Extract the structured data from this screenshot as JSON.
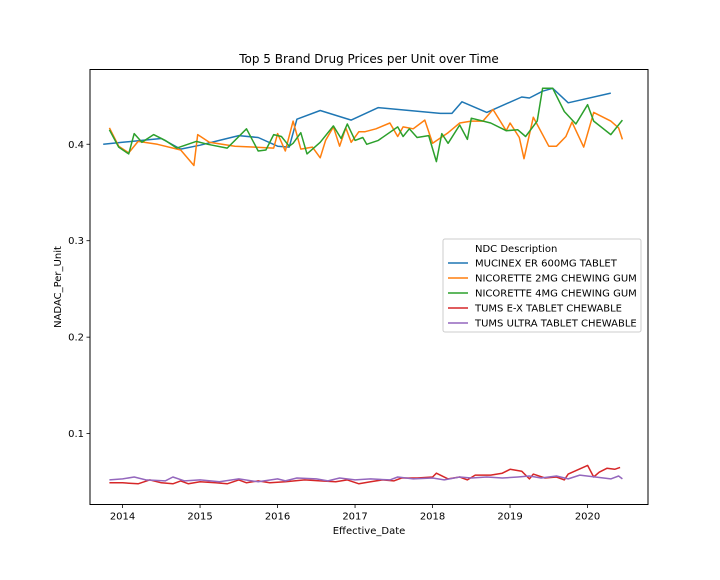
{
  "chart_data": {
    "type": "line",
    "title": "Top 5 Brand Drug Prices per Unit over Time",
    "xlabel": "Effective_Date",
    "ylabel": "NADAC_Per_Unit",
    "x_ticks": [
      2014,
      2015,
      2016,
      2017,
      2018,
      2019,
      2020
    ],
    "y_ticks": [
      0.1,
      0.2,
      0.3,
      0.4
    ],
    "y_tick_labels": [
      "0.1",
      "0.2",
      "0.3",
      "0.4"
    ],
    "xlim": [
      2013.58,
      2020.78
    ],
    "ylim": [
      0.0265,
      0.4775
    ],
    "grid": false,
    "legend": {
      "title": "NDC Description",
      "placement": "center-right"
    },
    "series": [
      {
        "name": "MUCINEX ER 600MG TABLET",
        "color": "#1f77b4",
        "points": [
          [
            2013.75,
            0.4
          ],
          [
            2014.0,
            0.402
          ],
          [
            2014.25,
            0.404
          ],
          [
            2014.5,
            0.406
          ],
          [
            2014.75,
            0.395
          ],
          [
            2015.0,
            0.399
          ],
          [
            2015.25,
            0.404
          ],
          [
            2015.5,
            0.409
          ],
          [
            2015.75,
            0.407
          ],
          [
            2016.0,
            0.398
          ],
          [
            2016.15,
            0.397
          ],
          [
            2016.25,
            0.426
          ],
          [
            2016.55,
            0.435
          ],
          [
            2016.95,
            0.425
          ],
          [
            2017.3,
            0.438
          ],
          [
            2017.7,
            0.435
          ],
          [
            2018.1,
            0.432
          ],
          [
            2018.25,
            0.432
          ],
          [
            2018.38,
            0.444
          ],
          [
            2018.7,
            0.433
          ],
          [
            2019.15,
            0.449
          ],
          [
            2019.25,
            0.448
          ],
          [
            2019.42,
            0.455
          ],
          [
            2019.55,
            0.458
          ],
          [
            2019.75,
            0.443
          ],
          [
            2020.3,
            0.453
          ]
        ]
      },
      {
        "name": "NICORETTE 2MG CHEWING GUM",
        "color": "#ff7f0e",
        "points": [
          [
            2013.83,
            0.417
          ],
          [
            2013.95,
            0.398
          ],
          [
            2014.08,
            0.391
          ],
          [
            2014.2,
            0.403
          ],
          [
            2014.45,
            0.4
          ],
          [
            2014.75,
            0.394
          ],
          [
            2014.92,
            0.378
          ],
          [
            2014.97,
            0.41
          ],
          [
            2015.12,
            0.402
          ],
          [
            2015.45,
            0.398
          ],
          [
            2015.95,
            0.396
          ],
          [
            2016.0,
            0.411
          ],
          [
            2016.1,
            0.393
          ],
          [
            2016.2,
            0.424
          ],
          [
            2016.3,
            0.395
          ],
          [
            2016.45,
            0.397
          ],
          [
            2016.55,
            0.386
          ],
          [
            2016.62,
            0.404
          ],
          [
            2016.72,
            0.418
          ],
          [
            2016.8,
            0.398
          ],
          [
            2016.88,
            0.417
          ],
          [
            2016.95,
            0.402
          ],
          [
            2017.05,
            0.413
          ],
          [
            2017.13,
            0.413
          ],
          [
            2017.27,
            0.416
          ],
          [
            2017.45,
            0.422
          ],
          [
            2017.55,
            0.408
          ],
          [
            2017.62,
            0.418
          ],
          [
            2017.75,
            0.416
          ],
          [
            2017.9,
            0.425
          ],
          [
            2018.0,
            0.401
          ],
          [
            2018.2,
            0.412
          ],
          [
            2018.35,
            0.422
          ],
          [
            2018.5,
            0.424
          ],
          [
            2018.65,
            0.424
          ],
          [
            2018.78,
            0.436
          ],
          [
            2018.95,
            0.414
          ],
          [
            2019.0,
            0.422
          ],
          [
            2019.12,
            0.407
          ],
          [
            2019.18,
            0.385
          ],
          [
            2019.3,
            0.428
          ],
          [
            2019.5,
            0.398
          ],
          [
            2019.6,
            0.398
          ],
          [
            2019.72,
            0.408
          ],
          [
            2019.8,
            0.423
          ],
          [
            2019.95,
            0.397
          ],
          [
            2020.08,
            0.433
          ],
          [
            2020.3,
            0.424
          ],
          [
            2020.4,
            0.417
          ],
          [
            2020.45,
            0.405
          ]
        ]
      },
      {
        "name": "NICORETTE 4MG CHEWING GUM",
        "color": "#2ca02c",
        "points": [
          [
            2013.83,
            0.415
          ],
          [
            2013.95,
            0.397
          ],
          [
            2014.08,
            0.39
          ],
          [
            2014.15,
            0.411
          ],
          [
            2014.25,
            0.402
          ],
          [
            2014.4,
            0.41
          ],
          [
            2014.55,
            0.404
          ],
          [
            2014.7,
            0.396
          ],
          [
            2014.95,
            0.403
          ],
          [
            2015.1,
            0.4
          ],
          [
            2015.35,
            0.396
          ],
          [
            2015.6,
            0.416
          ],
          [
            2015.75,
            0.393
          ],
          [
            2015.85,
            0.394
          ],
          [
            2015.95,
            0.41
          ],
          [
            2016.05,
            0.408
          ],
          [
            2016.15,
            0.398
          ],
          [
            2016.2,
            0.401
          ],
          [
            2016.3,
            0.412
          ],
          [
            2016.38,
            0.39
          ],
          [
            2016.55,
            0.402
          ],
          [
            2016.72,
            0.419
          ],
          [
            2016.82,
            0.406
          ],
          [
            2016.9,
            0.421
          ],
          [
            2017.0,
            0.404
          ],
          [
            2017.1,
            0.407
          ],
          [
            2017.15,
            0.4
          ],
          [
            2017.3,
            0.404
          ],
          [
            2017.55,
            0.418
          ],
          [
            2017.62,
            0.408
          ],
          [
            2017.7,
            0.416
          ],
          [
            2017.8,
            0.407
          ],
          [
            2017.95,
            0.409
          ],
          [
            2018.05,
            0.382
          ],
          [
            2018.12,
            0.411
          ],
          [
            2018.2,
            0.401
          ],
          [
            2018.35,
            0.42
          ],
          [
            2018.45,
            0.405
          ],
          [
            2018.5,
            0.427
          ],
          [
            2018.75,
            0.422
          ],
          [
            2018.95,
            0.414
          ],
          [
            2019.1,
            0.415
          ],
          [
            2019.2,
            0.408
          ],
          [
            2019.35,
            0.424
          ],
          [
            2019.42,
            0.458
          ],
          [
            2019.55,
            0.458
          ],
          [
            2019.7,
            0.434
          ],
          [
            2019.85,
            0.421
          ],
          [
            2020.0,
            0.441
          ],
          [
            2020.08,
            0.424
          ],
          [
            2020.3,
            0.41
          ],
          [
            2020.45,
            0.425
          ]
        ]
      },
      {
        "name": "TUMS E-X TABLET CHEWABLE",
        "color": "#d62728",
        "points": [
          [
            2013.83,
            0.049
          ],
          [
            2014.0,
            0.049
          ],
          [
            2014.2,
            0.048
          ],
          [
            2014.35,
            0.052
          ],
          [
            2014.5,
            0.049
          ],
          [
            2014.65,
            0.048
          ],
          [
            2014.75,
            0.051
          ],
          [
            2014.85,
            0.048
          ],
          [
            2015.0,
            0.05
          ],
          [
            2015.2,
            0.049
          ],
          [
            2015.35,
            0.048
          ],
          [
            2015.5,
            0.052
          ],
          [
            2015.6,
            0.049
          ],
          [
            2015.75,
            0.051
          ],
          [
            2015.9,
            0.049
          ],
          [
            2016.1,
            0.05
          ],
          [
            2016.35,
            0.052
          ],
          [
            2016.55,
            0.051
          ],
          [
            2016.75,
            0.05
          ],
          [
            2016.9,
            0.052
          ],
          [
            2017.05,
            0.048
          ],
          [
            2017.2,
            0.05
          ],
          [
            2017.35,
            0.052
          ],
          [
            2017.5,
            0.051
          ],
          [
            2017.6,
            0.054
          ],
          [
            2017.8,
            0.054
          ],
          [
            2018.0,
            0.055
          ],
          [
            2018.05,
            0.059
          ],
          [
            2018.2,
            0.053
          ],
          [
            2018.35,
            0.055
          ],
          [
            2018.45,
            0.052
          ],
          [
            2018.55,
            0.057
          ],
          [
            2018.75,
            0.057
          ],
          [
            2018.9,
            0.059
          ],
          [
            2019.0,
            0.063
          ],
          [
            2019.15,
            0.061
          ],
          [
            2019.25,
            0.053
          ],
          [
            2019.3,
            0.058
          ],
          [
            2019.45,
            0.054
          ],
          [
            2019.6,
            0.055
          ],
          [
            2019.7,
            0.052
          ],
          [
            2019.75,
            0.058
          ],
          [
            2020.0,
            0.067
          ],
          [
            2020.08,
            0.055
          ],
          [
            2020.15,
            0.06
          ],
          [
            2020.25,
            0.064
          ],
          [
            2020.35,
            0.063
          ],
          [
            2020.42,
            0.065
          ]
        ]
      },
      {
        "name": "TUMS ULTRA TABLET CHEWABLE",
        "color": "#9467bd",
        "points": [
          [
            2013.83,
            0.052
          ],
          [
            2014.0,
            0.053
          ],
          [
            2014.15,
            0.055
          ],
          [
            2014.3,
            0.052
          ],
          [
            2014.55,
            0.051
          ],
          [
            2014.65,
            0.055
          ],
          [
            2014.8,
            0.051
          ],
          [
            2015.0,
            0.052
          ],
          [
            2015.25,
            0.05
          ],
          [
            2015.5,
            0.053
          ],
          [
            2015.75,
            0.05
          ],
          [
            2016.0,
            0.053
          ],
          [
            2016.1,
            0.051
          ],
          [
            2016.25,
            0.054
          ],
          [
            2016.5,
            0.053
          ],
          [
            2016.65,
            0.051
          ],
          [
            2016.8,
            0.054
          ],
          [
            2017.0,
            0.052
          ],
          [
            2017.2,
            0.053
          ],
          [
            2017.45,
            0.052
          ],
          [
            2017.55,
            0.055
          ],
          [
            2017.75,
            0.053
          ],
          [
            2018.0,
            0.054
          ],
          [
            2018.15,
            0.052
          ],
          [
            2018.35,
            0.055
          ],
          [
            2018.5,
            0.054
          ],
          [
            2018.7,
            0.055
          ],
          [
            2018.9,
            0.054
          ],
          [
            2019.1,
            0.055
          ],
          [
            2019.25,
            0.056
          ],
          [
            2019.4,
            0.054
          ],
          [
            2019.6,
            0.056
          ],
          [
            2019.75,
            0.053
          ],
          [
            2019.9,
            0.057
          ],
          [
            2020.1,
            0.055
          ],
          [
            2020.3,
            0.053
          ],
          [
            2020.4,
            0.056
          ],
          [
            2020.45,
            0.053
          ]
        ]
      }
    ]
  }
}
